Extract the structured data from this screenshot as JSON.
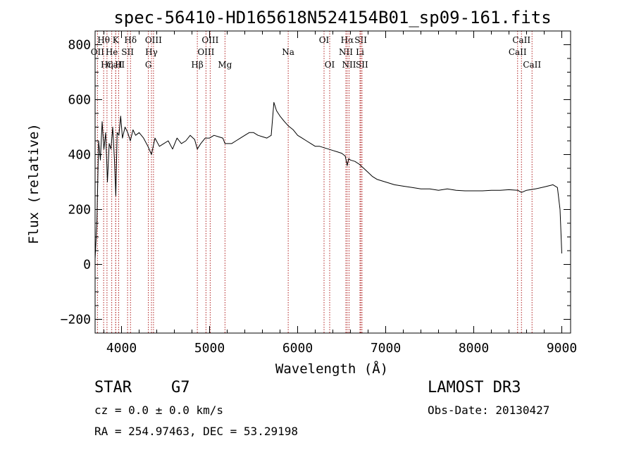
{
  "chart_data": {
    "type": "line",
    "title": "spec-56410-HD165618N524154B01_sp09-161.fits",
    "xlabel": "Wavelength (Å)",
    "ylabel": "Flux (relative)",
    "xlim": [
      3700,
      9100
    ],
    "ylim": [
      -250,
      850
    ],
    "xticks": [
      4000,
      5000,
      6000,
      7000,
      8000,
      9000
    ],
    "yticks": [
      -200,
      0,
      200,
      400,
      600,
      800
    ],
    "grid": false,
    "spectrum": {
      "name": "flux",
      "x": [
        3700,
        3720,
        3740,
        3760,
        3780,
        3800,
        3820,
        3840,
        3860,
        3880,
        3900,
        3920,
        3935,
        3950,
        3970,
        3990,
        4010,
        4040,
        4070,
        4100,
        4130,
        4160,
        4200,
        4250,
        4300,
        4340,
        4380,
        4430,
        4480,
        4530,
        4580,
        4630,
        4680,
        4730,
        4780,
        4830,
        4861,
        4900,
        4950,
        5000,
        5050,
        5100,
        5150,
        5175,
        5200,
        5250,
        5300,
        5350,
        5400,
        5450,
        5500,
        5550,
        5600,
        5650,
        5700,
        5730,
        5760,
        5800,
        5850,
        5893,
        5950,
        6000,
        6050,
        6100,
        6150,
        6200,
        6250,
        6300,
        6350,
        6400,
        6450,
        6500,
        6540,
        6563,
        6580,
        6600,
        6650,
        6700,
        6750,
        6800,
        6850,
        6900,
        6950,
        7000,
        7100,
        7200,
        7300,
        7400,
        7500,
        7600,
        7700,
        7800,
        7900,
        8000,
        8100,
        8200,
        8300,
        8400,
        8500,
        8542,
        8600,
        8700,
        8800,
        8900,
        8950,
        8980,
        9000
      ],
      "y": [
        20,
        150,
        450,
        380,
        520,
        420,
        480,
        300,
        440,
        420,
        500,
        380,
        250,
        480,
        470,
        540,
        460,
        500,
        480,
        450,
        490,
        470,
        480,
        460,
        430,
        400,
        460,
        430,
        440,
        450,
        420,
        460,
        440,
        450,
        470,
        455,
        420,
        440,
        460,
        460,
        470,
        465,
        460,
        440,
        440,
        440,
        450,
        460,
        470,
        480,
        480,
        470,
        465,
        460,
        470,
        590,
        560,
        540,
        520,
        505,
        490,
        470,
        460,
        450,
        440,
        430,
        430,
        425,
        420,
        415,
        410,
        405,
        395,
        360,
        385,
        380,
        375,
        365,
        350,
        335,
        320,
        310,
        305,
        300,
        290,
        285,
        280,
        275,
        275,
        270,
        275,
        270,
        268,
        268,
        268,
        270,
        270,
        272,
        270,
        262,
        270,
        275,
        282,
        290,
        280,
        200,
        40
      ]
    },
    "lines": [
      {
        "name": "CaII",
        "x": 3934,
        "row": 3
      },
      {
        "name": "OII",
        "x": 3727,
        "row": 2
      },
      {
        "name": "Hη",
        "x": 3835,
        "row": 3
      },
      {
        "name": "Hθ",
        "x": 3797,
        "row": 1
      },
      {
        "name": "K",
        "x": 3934,
        "row": 1
      },
      {
        "name": "He",
        "x": 3889,
        "row": 2
      },
      {
        "name": "H",
        "x": 3968,
        "row": 3
      },
      {
        "name": "SII",
        "x": 4069,
        "row": 2
      },
      {
        "name": "Hδ",
        "x": 4102,
        "row": 1
      },
      {
        "name": "OIII",
        "x": 4363,
        "row": 1
      },
      {
        "name": "Hγ",
        "x": 4340,
        "row": 2
      },
      {
        "name": "G",
        "x": 4305,
        "row": 3
      },
      {
        "name": "OIII",
        "x": 5007,
        "row": 1
      },
      {
        "name": "OIII",
        "x": 4959,
        "row": 2
      },
      {
        "name": "Hβ",
        "x": 4861,
        "row": 3
      },
      {
        "name": "Mg",
        "x": 5175,
        "row": 3
      },
      {
        "name": "Na",
        "x": 5893,
        "row": 2
      },
      {
        "name": "OI",
        "x": 6300,
        "row": 1
      },
      {
        "name": "OI",
        "x": 6364,
        "row": 3
      },
      {
        "name": "Hα",
        "x": 6563,
        "row": 1
      },
      {
        "name": "NII",
        "x": 6548,
        "row": 2
      },
      {
        "name": "NII",
        "x": 6584,
        "row": 3
      },
      {
        "name": "SII",
        "x": 6717,
        "row": 1
      },
      {
        "name": "Li",
        "x": 6708,
        "row": 2
      },
      {
        "name": "SII",
        "x": 6731,
        "row": 3
      },
      {
        "name": "CaII",
        "x": 8542,
        "row": 1
      },
      {
        "name": "CaII",
        "x": 8498,
        "row": 2
      },
      {
        "name": "CaII",
        "x": 8662,
        "row": 3
      }
    ]
  },
  "info": {
    "object_class": "STAR",
    "subclass": "G7",
    "survey": "LAMOST DR3",
    "cz": "cz = 0.0 ± 0.0 km/s",
    "obs_date": "Obs-Date: 20130427",
    "coords": "RA = 254.97463, DEC =  53.29198"
  },
  "colors": {
    "axis": "#000000",
    "spectrum": "#000000",
    "line_marker": "#b02020"
  }
}
